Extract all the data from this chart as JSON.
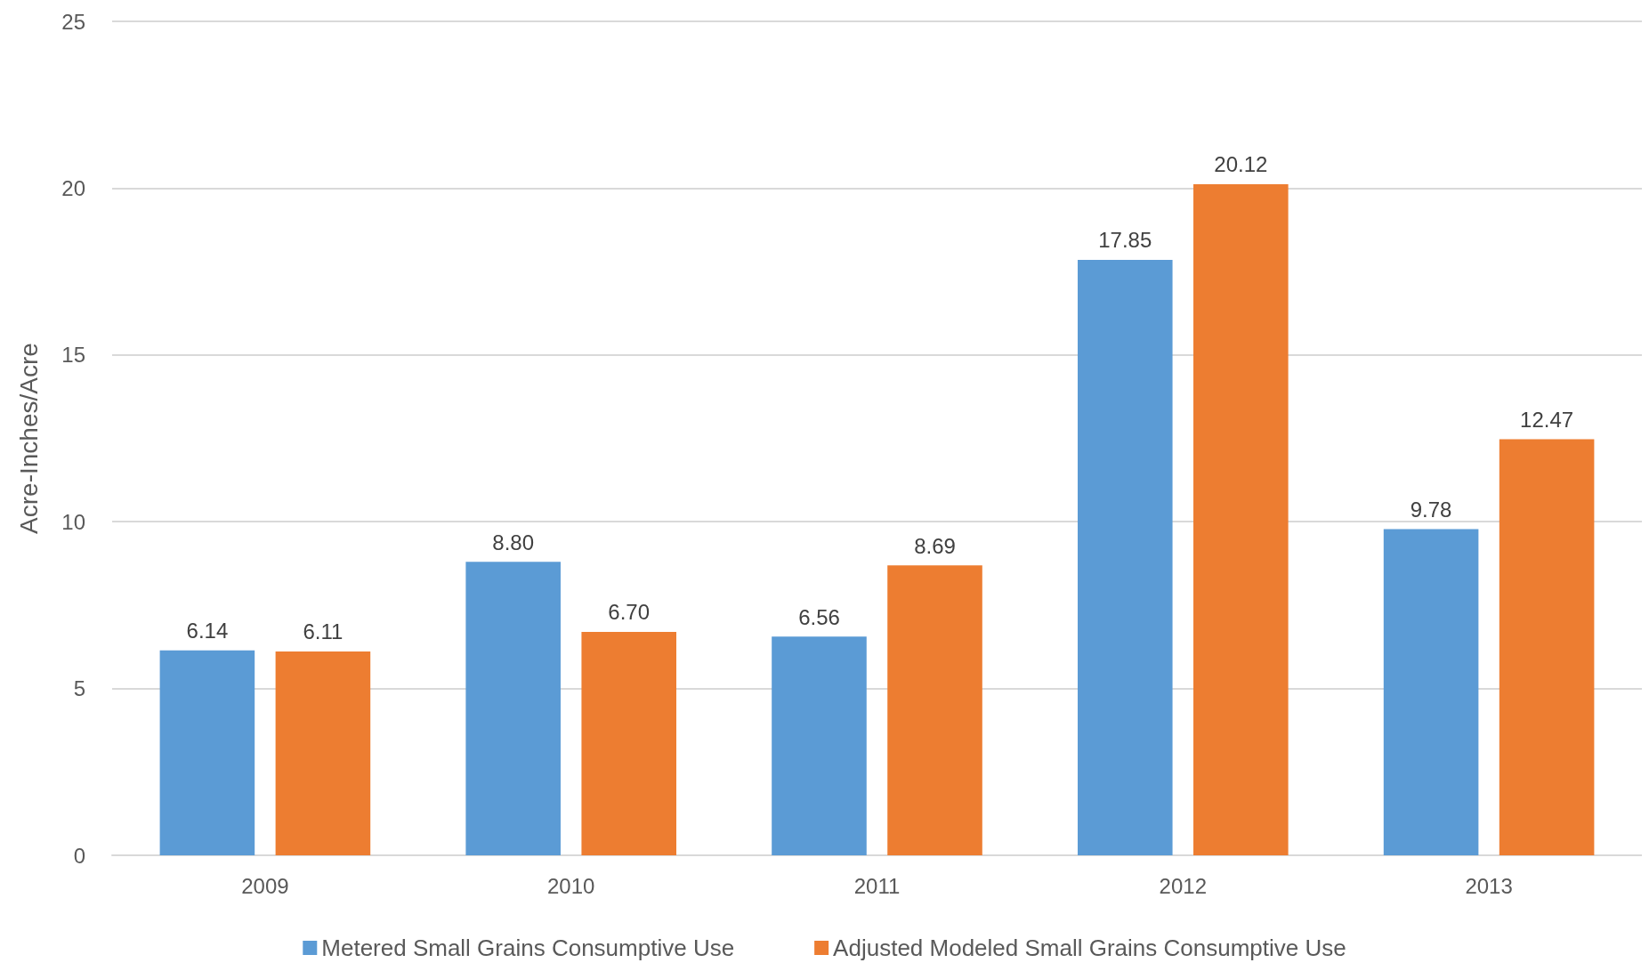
{
  "chart_data": {
    "type": "bar",
    "ylabel": "Acre-Inches/Acre",
    "categories": [
      "2009",
      "2010",
      "2011",
      "2012",
      "2013"
    ],
    "series": [
      {
        "name": "Metered Small Grains Consumptive Use",
        "color": "#5b9bd5",
        "values": [
          6.14,
          8.8,
          6.56,
          17.85,
          9.78
        ],
        "value_labels": [
          "6.14",
          "8.80",
          "6.56",
          "17.85",
          "9.78"
        ]
      },
      {
        "name": "Adjusted Modeled Small Grains Consumptive Use",
        "color": "#ed7d31",
        "values": [
          6.11,
          6.7,
          8.69,
          20.12,
          12.47
        ],
        "value_labels": [
          "6.11",
          "6.70",
          "8.69",
          "20.12",
          "12.47"
        ]
      }
    ],
    "ylim": [
      0,
      25
    ],
    "yticks": [
      0,
      5,
      10,
      15,
      20,
      25
    ],
    "grid": "y",
    "legend": "bottom"
  }
}
